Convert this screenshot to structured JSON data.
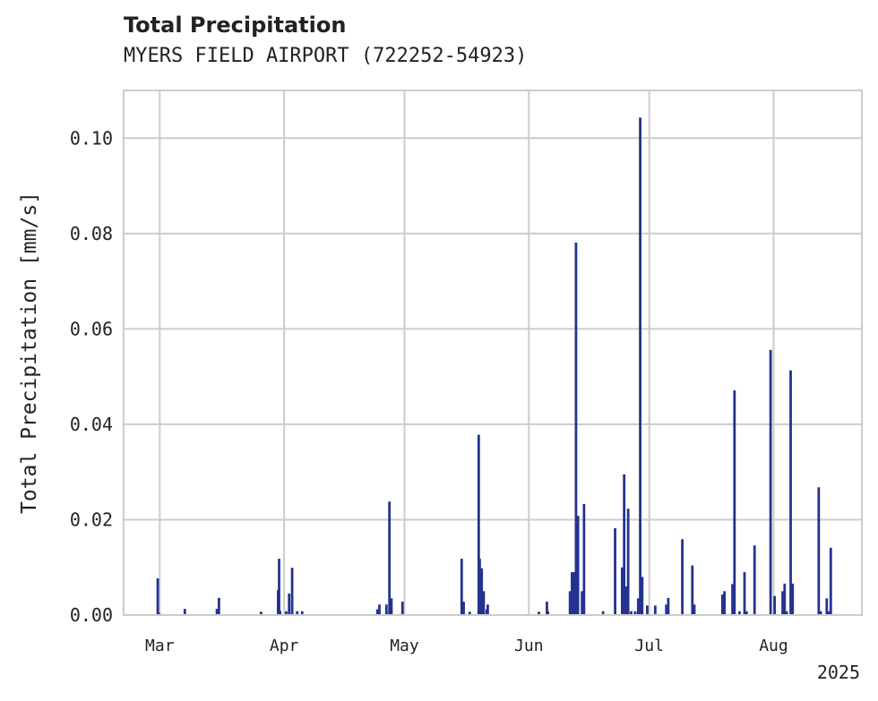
{
  "chart_data": {
    "type": "bar",
    "title": "Total Precipitation",
    "subtitle": "MYERS FIELD AIRPORT (722252-54923)",
    "xlabel": "",
    "ylabel": "Total Precipitation [mm/s]",
    "year_label": "2025",
    "ylim": [
      0,
      0.11
    ],
    "xlim": [
      "2025-02-20",
      "2025-08-23"
    ],
    "grid": true,
    "legend": "none",
    "color": "#24338f",
    "y_ticks": [
      "0.00",
      "0.02",
      "0.04",
      "0.06",
      "0.08",
      "0.10"
    ],
    "y_tick_values": [
      0,
      0.02,
      0.04,
      0.06,
      0.08,
      0.1
    ],
    "x_ticks": [
      {
        "date": "2025-03-01",
        "label": "Mar"
      },
      {
        "date": "2025-04-01",
        "label": "Apr"
      },
      {
        "date": "2025-05-01",
        "label": "May"
      },
      {
        "date": "2025-06-01",
        "label": "Jun"
      },
      {
        "date": "2025-07-01",
        "label": "Jul"
      },
      {
        "date": "2025-08-01",
        "label": "Aug"
      }
    ],
    "series": [
      {
        "x": [
          "2025-02-28 12:00",
          "2025-02-28 18:00",
          "2025-03-07 06:00",
          "2025-03-15 06:00",
          "2025-03-15 18:00",
          "2025-03-26 06:00",
          "2025-03-30 12:00",
          "2025-03-30 18:00",
          "2025-03-31 00:00",
          "2025-04-01 12:00",
          "2025-04-02 06:00",
          "2025-04 -03 00:00",
          "2025-04-04 06:00",
          "2025-04-05 12:00",
          "2025-04-24 06:00",
          "2025-04-24 18:00",
          "2025-04-26 12:00",
          "2025-04-27 06:00",
          "2025-04-27 18:00",
          "2025-04-30 12:00",
          "2025-05-15 06:00",
          "2025-05-15 18:00",
          "2025-05-17 06:00",
          "2025-05-19 12:00",
          "2025-05-19 18:00",
          "2025-05-20 06:00",
          "2025-05-20 18:00",
          "2025-05-21 12:00",
          "2025-05-21 18:00",
          "2025-06-03 12:00",
          "2025-06-05 12:00",
          "2025-06-05 18:00",
          "2025-06-11 06:00",
          "2025-06-11 18:00",
          "2025-06-12 06:00",
          "2025-06-12 18:00",
          "2025-06-13 06:00",
          "2025-06-14 06:00",
          "2025-06-14 18:00",
          "2025-06-19 12:00",
          "2025-06-22 12:00",
          "2025-06-24 06:00",
          "2025-06-24 18:00",
          "2025-06-25 06:00",
          "2025-06-25 18:00",
          "2025-06-26 12:00",
          "2025-06-27 12:00",
          "2025-06-28 06:00",
          "2025-06-28 18:00",
          "2025-06-29 06:00",
          "2025-06-30 12:00",
          "2025-07-02 12:00",
          "2025-07-05 06:00",
          "2025-07-05 18:00",
          "2025-07-09 06:00",
          "2025-07-11 18:00",
          "2025-07-12 06:00",
          "2025-07-19 06:00",
          "2025-07-19 18:00",
          "2025-07-21 18:00",
          "2025-07-22 06:00",
          "2025-07-23 12:00",
          "2025-07-24 18:00",
          "2025-07-25 06:00",
          "2025-07-27 06:00",
          "2025-07-31 06:00",
          "2025-08-01 06:00",
          "2025-08-03 06:00",
          "2025-08-03 18:00",
          "2025-08-04 06:00",
          "2025-08-05 06:00",
          "2025-08-05 18:00",
          "2025-08-12 06:00",
          "2025-08-12 18:00",
          "2025-08-14 06:00",
          "2025-08-14 18:00",
          "2025-08-15 06:00"
        ],
        "values": [
          0.0077,
          0.0005,
          0.0013,
          0.0013,
          0.0036,
          0.0007,
          0.0052,
          0.0118,
          0.0009,
          0.0008,
          0.0045,
          0.0099,
          0.0008,
          0.0008,
          0.0012,
          0.0022,
          0.0022,
          0.0238,
          0.0035,
          0.0028,
          0.0118,
          0.0028,
          0.0007,
          0.0378,
          0.0118,
          0.0098,
          0.005,
          0.0012,
          0.0022,
          0.0007,
          0.0028,
          0.0008,
          0.005,
          0.009,
          0.009,
          0.0781,
          0.0208,
          0.005,
          0.0233,
          0.0008,
          0.0182,
          0.01,
          0.0295,
          0.006,
          0.0223,
          0.0008,
          0.0008,
          0.0035,
          0.1043,
          0.008,
          0.002,
          0.002,
          0.0022,
          0.0036,
          0.0159,
          0.0104,
          0.0022,
          0.0043,
          0.005,
          0.0065,
          0.0471,
          0.0008,
          0.009,
          0.0008,
          0.0146,
          0.0556,
          0.004,
          0.005,
          0.0066,
          0.0008,
          0.0513,
          0.0066,
          0.0268,
          0.0008,
          0.0035,
          0.0008,
          0.0141
        ]
      }
    ]
  }
}
